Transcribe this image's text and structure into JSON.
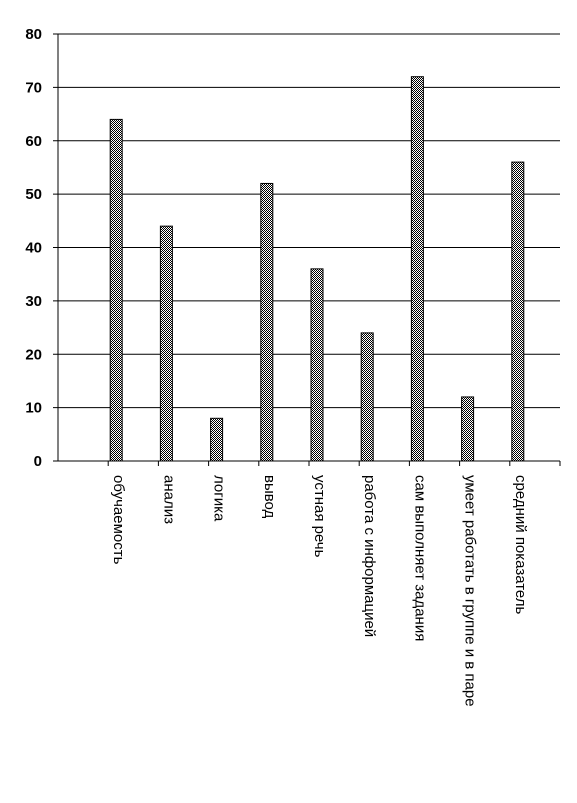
{
  "chart_data": {
    "type": "bar",
    "categories": [
      "",
      "обучаемость",
      "анализ",
      "логика",
      "вывод",
      "устная речь",
      "работа с информацией",
      "сам выполняет задания",
      "умеет работать в группе и в паре",
      "средний показатель"
    ],
    "values": [
      null,
      64,
      44,
      8,
      52,
      36,
      24,
      72,
      12,
      56
    ],
    "title": "",
    "xlabel": "",
    "ylabel": "",
    "ylim": [
      0,
      80
    ],
    "yticks": [
      0,
      10,
      20,
      30,
      40,
      50,
      60,
      70,
      80
    ],
    "ytick_labels": [
      "0",
      "10",
      "20",
      "30",
      "40",
      "50",
      "60",
      "70",
      "80"
    ],
    "grid": true,
    "legend": "none",
    "bar_color": "#333333"
  }
}
